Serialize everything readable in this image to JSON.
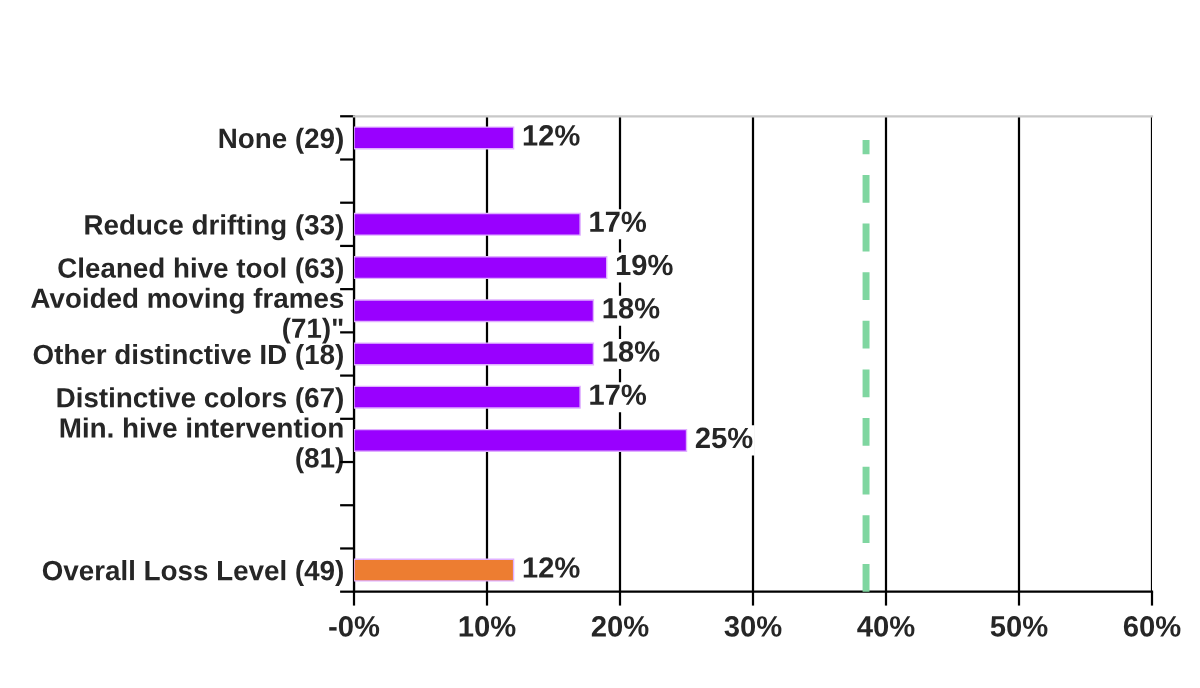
{
  "chart_data": {
    "type": "bar",
    "orientation": "horizontal",
    "categories": [
      "None (29)",
      null,
      "Reduce drifting (33)",
      "Cleaned hive tool (63)",
      "Avoided moving frames\n(71)\"",
      "Other distinctive ID (18)",
      "Distinctive colors (67)",
      "Min. hive intervention\n(81)",
      null,
      null,
      "Overall Loss Level (49)"
    ],
    "values": [
      12,
      null,
      17,
      19,
      18,
      18,
      17,
      25,
      null,
      null,
      12
    ],
    "colors": [
      "#9900ff",
      "#9900ff",
      "#9900ff",
      "#9900ff",
      "#9900ff",
      "#9900ff",
      "#9900ff",
      "#9900ff",
      "#9900ff",
      "#9900ff",
      "#ed7d31"
    ],
    "value_labels": [
      "12%",
      null,
      "17%",
      "19%",
      "18%",
      "18%",
      "17%",
      "25%",
      null,
      null,
      "12%"
    ],
    "xlim": [
      0,
      60
    ],
    "xticks": [
      {
        "value": 0,
        "label": "-0%"
      },
      {
        "value": 10,
        "label": "10%"
      },
      {
        "value": 20,
        "label": "20%"
      },
      {
        "value": 30,
        "label": "30%"
      },
      {
        "value": 40,
        "label": "40%"
      },
      {
        "value": 50,
        "label": "50%"
      },
      {
        "value": 60,
        "label": "60%"
      }
    ],
    "grid": "x",
    "ref_lines": [
      {
        "axis": "x",
        "value": 38.5,
        "color": "#7fd6a0",
        "line_style": "dashed"
      }
    ]
  }
}
